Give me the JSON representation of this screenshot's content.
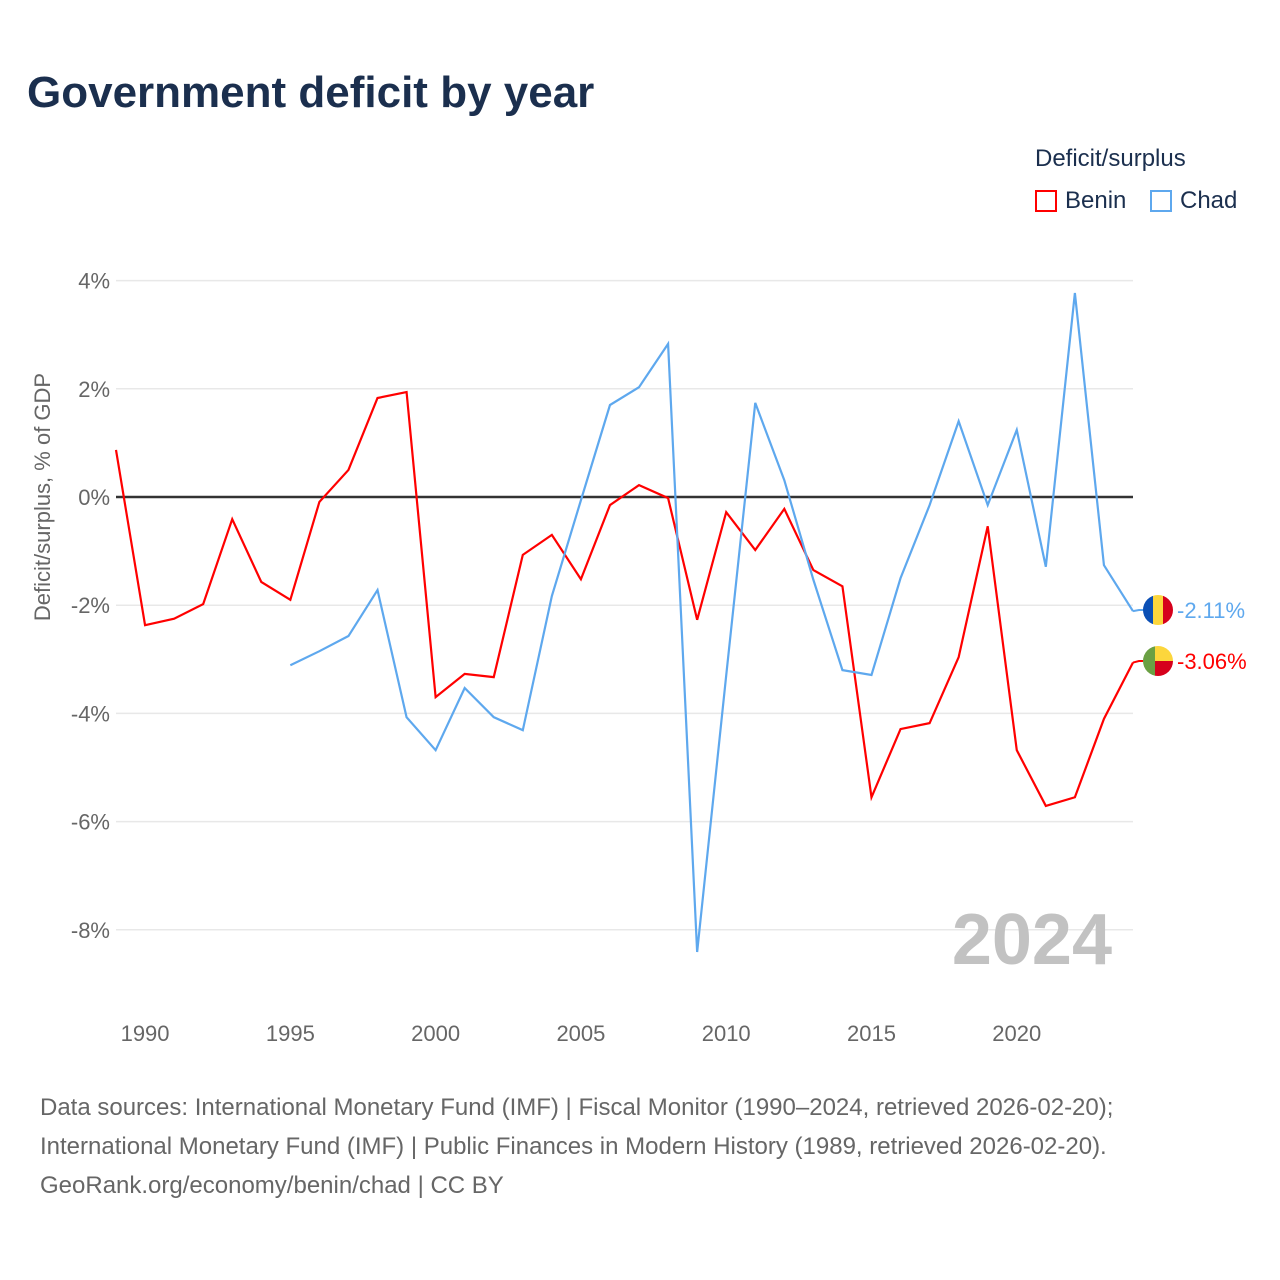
{
  "chart_data": {
    "type": "line",
    "title": "Government deficit by year",
    "ylabel": "Deficit/surplus, % of GDP",
    "xlabel": "",
    "ylim": [
      -9.5,
      4.5
    ],
    "xlim": [
      1989,
      2024
    ],
    "yticks": [
      4,
      2,
      0,
      -2,
      -4,
      -6,
      -8
    ],
    "ytick_labels": [
      "4%",
      "2%",
      "0%",
      "-2%",
      "-4%",
      "-6%",
      "-8%"
    ],
    "xticks": [
      1990,
      1995,
      2000,
      2005,
      2010,
      2015,
      2020
    ],
    "xtick_labels": [
      "1990",
      "1995",
      "2000",
      "2005",
      "2010",
      "2015",
      "2020"
    ],
    "grid": true,
    "legend_title": "Deficit/surplus",
    "legend_position": "top-right",
    "year_watermark": "2024",
    "series": [
      {
        "name": "Benin",
        "color": "#ff0000",
        "end_label": "-3.06%",
        "x": [
          1989,
          1990,
          1991,
          1992,
          1993,
          1994,
          1995,
          1996,
          1997,
          1998,
          1999,
          2000,
          2001,
          2002,
          2003,
          2004,
          2005,
          2006,
          2007,
          2008,
          2009,
          2010,
          2011,
          2012,
          2013,
          2014,
          2015,
          2016,
          2017,
          2018,
          2019,
          2020,
          2021,
          2022,
          2023,
          2024
        ],
        "values": [
          0.87,
          -2.37,
          -2.25,
          -1.98,
          -0.41,
          -1.57,
          -1.9,
          -0.09,
          0.5,
          1.83,
          1.94,
          -3.7,
          -3.27,
          -3.33,
          -1.07,
          -0.7,
          -1.52,
          -0.15,
          0.22,
          -0.02,
          -2.27,
          -0.28,
          -0.98,
          -0.22,
          -1.35,
          -1.65,
          -5.55,
          -4.29,
          -4.18,
          -2.96,
          -0.54,
          -4.68,
          -5.71,
          -5.55,
          -4.1,
          -3.06
        ]
      },
      {
        "name": "Chad",
        "color": "#5ea8ee",
        "end_label": "-2.11%",
        "x": [
          1995,
          1996,
          1997,
          1998,
          1999,
          2000,
          2001,
          2002,
          2003,
          2004,
          2005,
          2006,
          2007,
          2008,
          2009,
          2010,
          2011,
          2012,
          2013,
          2014,
          2015,
          2016,
          2017,
          2018,
          2019,
          2020,
          2021,
          2022,
          2023,
          2024
        ],
        "values": [
          -3.11,
          -2.85,
          -2.57,
          -1.72,
          -4.07,
          -4.68,
          -3.53,
          -4.07,
          -4.31,
          -1.83,
          -0.06,
          1.7,
          2.03,
          2.83,
          -8.41,
          -3.3,
          1.74,
          0.31,
          -1.53,
          -3.2,
          -3.29,
          -1.5,
          -0.15,
          1.4,
          -0.15,
          1.24,
          -1.29,
          3.77,
          -1.26,
          -2.11
        ]
      }
    ]
  },
  "footer": {
    "line1": "Data sources: International Monetary Fund (IMF) | Fiscal Monitor (1990–2024, retrieved 2026-02-20);",
    "line2": "International Monetary Fund (IMF) | Public Finances in Modern History (1989, retrieved 2026-02-20).",
    "line3": "GeoRank.org/economy/benin/chad | CC BY"
  }
}
